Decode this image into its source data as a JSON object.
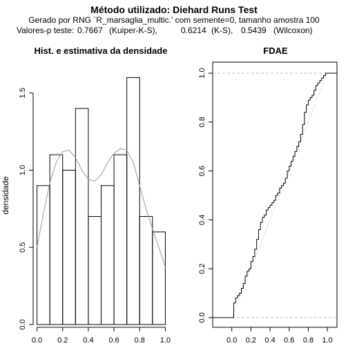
{
  "header": {
    "title": "Método utilizado: Diehard Runs Test",
    "subtitle": "Gerado por RNG `R_marsaglia_multic.' com semente=0, tamanho amostra 100",
    "pvalues_label": "Valores-p teste:",
    "pvalues": [
      {
        "value": "0.7667",
        "test": "(Kuiper-K-S),"
      },
      {
        "value": "0.6214",
        "test": "(K-S),"
      },
      {
        "value": "0.5439",
        "test": "(Wilcoxon)"
      }
    ]
  },
  "chart_data": [
    {
      "type": "bar",
      "title": "Hist. e estimativa da densidade",
      "xlabel": "",
      "ylabel": "densidade",
      "xlim": [
        -0.03,
        1.03
      ],
      "ylim": [
        0,
        1.7
      ],
      "xticks": [
        "0.0",
        "0.2",
        "0.4",
        "0.6",
        "0.8",
        "1.0"
      ],
      "yticks": [
        "0.0",
        "0.5",
        "1.0",
        "1.5"
      ],
      "bin_edges": [
        0,
        0.1,
        0.2,
        0.3,
        0.4,
        0.5,
        0.6,
        0.7,
        0.8,
        0.9,
        1.0
      ],
      "values": [
        0.9,
        1.1,
        1.0,
        1.4,
        0.7,
        0.9,
        1.1,
        1.6,
        0.7,
        0.6
      ],
      "density_curve": {
        "x": [
          0.0,
          0.05,
          0.1,
          0.15,
          0.2,
          0.25,
          0.3,
          0.35,
          0.4,
          0.45,
          0.5,
          0.55,
          0.6,
          0.65,
          0.7,
          0.75,
          0.8,
          0.85,
          0.9,
          0.95,
          1.0
        ],
        "y": [
          0.5,
          0.72,
          0.92,
          1.05,
          1.12,
          1.13,
          1.08,
          1.0,
          0.94,
          0.93,
          0.97,
          1.05,
          1.11,
          1.14,
          1.13,
          1.05,
          0.9,
          0.75,
          0.62,
          0.5,
          0.37
        ]
      }
    },
    {
      "type": "line",
      "title": "FDAE",
      "xlabel": "",
      "ylabel": "",
      "xlim": [
        -0.2,
        1.1
      ],
      "ylim": [
        0,
        1.0
      ],
      "xticks": [
        "0.0",
        "0.2",
        "0.4",
        "0.6",
        "0.8",
        "1.0"
      ],
      "yticks": [
        "0.0",
        "0.2",
        "0.4",
        "0.6",
        "0.8",
        "1.0"
      ],
      "reference_lines": [
        0,
        1
      ],
      "series": [
        {
          "x": [
            0.0,
            0.02,
            0.04,
            0.06,
            0.08,
            0.1,
            0.12,
            0.14,
            0.16,
            0.18,
            0.2,
            0.22,
            0.24,
            0.26,
            0.28,
            0.3,
            0.32,
            0.34,
            0.36,
            0.38,
            0.4,
            0.42,
            0.44,
            0.46,
            0.48,
            0.5,
            0.52,
            0.54,
            0.56,
            0.58,
            0.6,
            0.62,
            0.64,
            0.66,
            0.68,
            0.7,
            0.72,
            0.74,
            0.76,
            0.78,
            0.8,
            0.82,
            0.84,
            0.86,
            0.88,
            0.9,
            0.92,
            0.94,
            0.96,
            0.98,
            1.0
          ],
          "y": [
            0.0,
            0.06,
            0.08,
            0.09,
            0.1,
            0.12,
            0.14,
            0.17,
            0.19,
            0.2,
            0.23,
            0.25,
            0.28,
            0.32,
            0.36,
            0.39,
            0.41,
            0.42,
            0.44,
            0.45,
            0.46,
            0.47,
            0.48,
            0.5,
            0.51,
            0.53,
            0.54,
            0.55,
            0.57,
            0.6,
            0.62,
            0.64,
            0.66,
            0.68,
            0.7,
            0.72,
            0.75,
            0.79,
            0.84,
            0.87,
            0.89,
            0.9,
            0.91,
            0.93,
            0.95,
            0.96,
            0.97,
            0.98,
            0.99,
            1.0,
            1.0
          ]
        },
        {
          "x": [
            0.0,
            1.0
          ],
          "y": [
            0.0,
            1.0
          ]
        }
      ]
    }
  ]
}
